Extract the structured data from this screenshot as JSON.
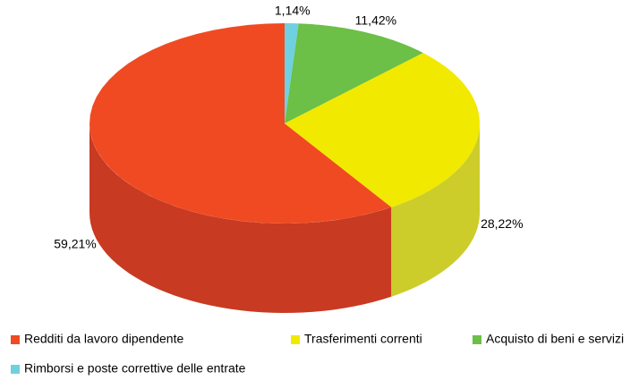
{
  "chart_data": {
    "type": "pie",
    "categories": [
      "Redditi da lavoro dipendente",
      "Trasferimenti correnti",
      "Acquisto di beni e servizi",
      "Rimborsi e poste correttive delle entrate"
    ],
    "values": [
      59.21,
      28.22,
      11.42,
      1.14
    ],
    "value_labels": [
      "59,21%",
      "28,22%",
      "11,42%",
      "1,14%"
    ],
    "colors": [
      "#f04a23",
      "#f2e900",
      "#6cbf47",
      "#6fd0e0"
    ],
    "side_colors": [
      "#c83a22",
      "#cccd2a",
      "#5a9e3a",
      "#58a9b6"
    ],
    "legend": "bottom"
  }
}
